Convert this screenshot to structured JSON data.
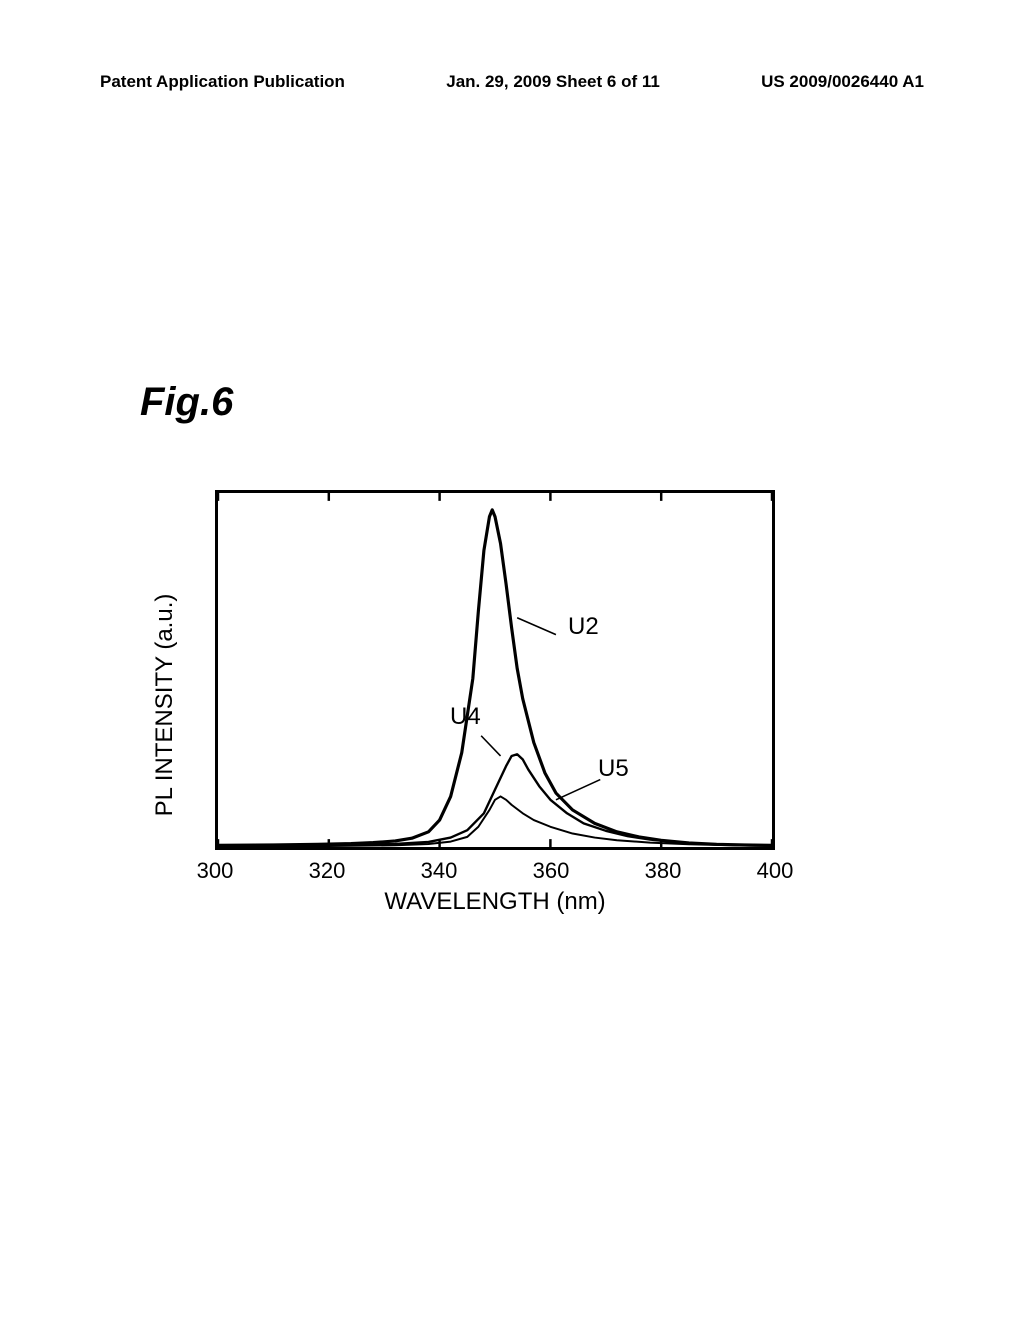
{
  "header": {
    "left": "Patent Application Publication",
    "center": "Jan. 29, 2009  Sheet 6 of 11",
    "right": "US 2009/0026440 A1"
  },
  "figure_label": "Fig.6",
  "chart": {
    "type": "line",
    "xlabel": "WAVELENGTH (nm)",
    "ylabel": "PL INTENSITY (a.u.)",
    "xlim": [
      300,
      400
    ],
    "ylim": [
      0,
      105
    ],
    "xticks": [
      300,
      320,
      340,
      360,
      380,
      400
    ],
    "xtick_labels": [
      "300",
      "320",
      "340",
      "360",
      "380",
      "400"
    ],
    "background_color": "#ffffff",
    "border_color": "#000000",
    "border_width": 3,
    "label_fontsize": 24,
    "tick_fontsize": 22,
    "series": [
      {
        "name": "U2",
        "label": "U2",
        "label_pos": {
          "x": 362,
          "y": 62
        },
        "leader": {
          "from_x": 354,
          "from_y": 68,
          "to_x": 361,
          "to_y": 63
        },
        "color": "#000000",
        "line_width": 3.2,
        "points": [
          [
            300,
            0.5
          ],
          [
            310,
            0.6
          ],
          [
            318,
            0.8
          ],
          [
            324,
            1.0
          ],
          [
            328,
            1.3
          ],
          [
            332,
            1.8
          ],
          [
            335,
            2.6
          ],
          [
            338,
            4.5
          ],
          [
            340,
            8
          ],
          [
            342,
            15
          ],
          [
            344,
            28
          ],
          [
            346,
            50
          ],
          [
            347,
            70
          ],
          [
            348,
            88
          ],
          [
            349,
            98
          ],
          [
            349.5,
            100
          ],
          [
            350,
            98
          ],
          [
            351,
            90
          ],
          [
            352,
            78
          ],
          [
            353,
            65
          ],
          [
            354,
            53
          ],
          [
            355,
            44
          ],
          [
            357,
            31
          ],
          [
            359,
            22
          ],
          [
            361,
            16
          ],
          [
            364,
            11
          ],
          [
            368,
            7
          ],
          [
            372,
            4.5
          ],
          [
            376,
            3
          ],
          [
            380,
            2
          ],
          [
            385,
            1.2
          ],
          [
            390,
            0.8
          ],
          [
            395,
            0.6
          ],
          [
            400,
            0.5
          ]
        ]
      },
      {
        "name": "U4",
        "label": "U4",
        "label_pos": {
          "x": 343.5,
          "y": 38
        },
        "leader": {
          "from_x": 351,
          "from_y": 27,
          "to_x": 347.5,
          "to_y": 33
        },
        "color": "#000000",
        "line_width": 2.4,
        "points": [
          [
            300,
            0.3
          ],
          [
            315,
            0.4
          ],
          [
            325,
            0.6
          ],
          [
            332,
            0.9
          ],
          [
            338,
            1.5
          ],
          [
            342,
            2.8
          ],
          [
            345,
            5
          ],
          [
            348,
            10
          ],
          [
            350,
            17
          ],
          [
            352,
            24
          ],
          [
            353,
            27
          ],
          [
            354,
            27.5
          ],
          [
            355,
            26
          ],
          [
            356,
            23
          ],
          [
            358,
            18
          ],
          [
            360,
            14
          ],
          [
            363,
            10
          ],
          [
            366,
            7
          ],
          [
            370,
            4.8
          ],
          [
            374,
            3.2
          ],
          [
            378,
            2.2
          ],
          [
            382,
            1.5
          ],
          [
            388,
            0.9
          ],
          [
            395,
            0.5
          ],
          [
            400,
            0.4
          ]
        ]
      },
      {
        "name": "U5",
        "label": "U5",
        "label_pos": {
          "x": 370,
          "y": 23
        },
        "leader": {
          "from_x": 361,
          "from_y": 14,
          "to_x": 369,
          "to_y": 20
        },
        "color": "#000000",
        "line_width": 2.0,
        "points": [
          [
            300,
            0.2
          ],
          [
            320,
            0.3
          ],
          [
            332,
            0.5
          ],
          [
            338,
            0.9
          ],
          [
            342,
            1.6
          ],
          [
            345,
            3
          ],
          [
            347,
            6
          ],
          [
            349,
            11
          ],
          [
            350,
            14
          ],
          [
            351,
            15
          ],
          [
            352,
            14
          ],
          [
            353,
            12.5
          ],
          [
            355,
            10
          ],
          [
            357,
            8
          ],
          [
            360,
            6
          ],
          [
            364,
            4
          ],
          [
            368,
            2.8
          ],
          [
            372,
            2
          ],
          [
            378,
            1.3
          ],
          [
            385,
            0.8
          ],
          [
            395,
            0.4
          ],
          [
            400,
            0.3
          ]
        ]
      }
    ]
  }
}
